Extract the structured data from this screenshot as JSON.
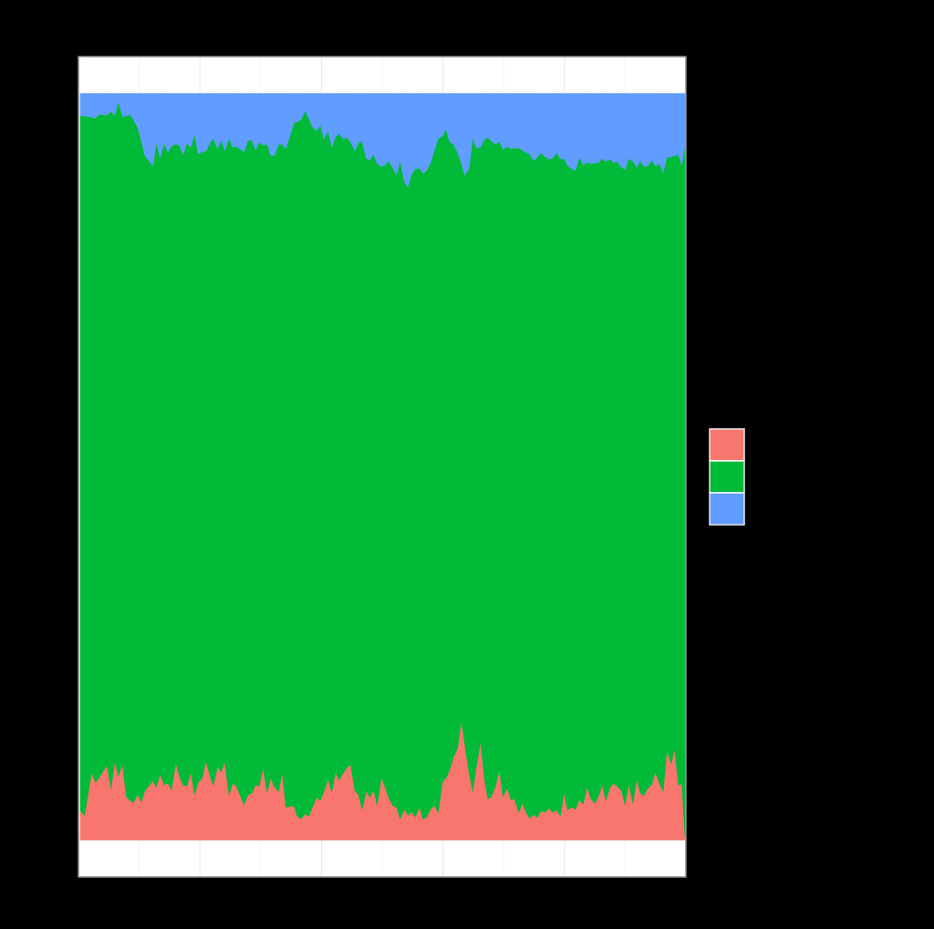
{
  "chart_data": {
    "type": "area",
    "stacking": "fill",
    "x_range": [
      0,
      1
    ],
    "ylim": [
      0,
      1
    ],
    "grid": true,
    "legend_placement": "right",
    "colors": [
      "#F8766D",
      "#00BA38",
      "#619CFF"
    ],
    "x": [
      0.0,
      0.007,
      0.019,
      0.025,
      0.031,
      0.044,
      0.051,
      0.057,
      0.063,
      0.07,
      0.076,
      0.082,
      0.088,
      0.095,
      0.101,
      0.107,
      0.12,
      0.126,
      0.132,
      0.139,
      0.145,
      0.151,
      0.158,
      0.164,
      0.17,
      0.176,
      0.183,
      0.189,
      0.195,
      0.202,
      0.208,
      0.214,
      0.22,
      0.227,
      0.233,
      0.239,
      0.246,
      0.252,
      0.258,
      0.271,
      0.277,
      0.284,
      0.29,
      0.296,
      0.302,
      0.309,
      0.315,
      0.321,
      0.328,
      0.334,
      0.34,
      0.353,
      0.359,
      0.365,
      0.372,
      0.378,
      0.384,
      0.391,
      0.397,
      0.403,
      0.41,
      0.416,
      0.422,
      0.428,
      0.435,
      0.441,
      0.447,
      0.454,
      0.46,
      0.466,
      0.473,
      0.479,
      0.485,
      0.491,
      0.498,
      0.504,
      0.51,
      0.517,
      0.523,
      0.529,
      0.536,
      0.542,
      0.548,
      0.554,
      0.561,
      0.567,
      0.573,
      0.58,
      0.586,
      0.592,
      0.599,
      0.605,
      0.611,
      0.617,
      0.624,
      0.63,
      0.636,
      0.643,
      0.649,
      0.655,
      0.662,
      0.668,
      0.674,
      0.68,
      0.687,
      0.693,
      0.699,
      0.706,
      0.712,
      0.718,
      0.725,
      0.731,
      0.737,
      0.743,
      0.75,
      0.756,
      0.762,
      0.769,
      0.775,
      0.781,
      0.788,
      0.794,
      0.8,
      0.806,
      0.813,
      0.819,
      0.825,
      0.832,
      0.838,
      0.844,
      0.851,
      0.857,
      0.863,
      0.869,
      0.876,
      0.882,
      0.888,
      0.895,
      0.901,
      0.907,
      0.914,
      0.92,
      0.926,
      0.932,
      0.939,
      0.945,
      0.951,
      0.958,
      0.964,
      0.97,
      0.977,
      0.983,
      0.989,
      0.995,
      1.0
    ],
    "series": [
      {
        "values": [
          0.039,
          0.033,
          0.091,
          0.077,
          0.083,
          0.1,
          0.069,
          0.105,
          0.086,
          0.101,
          0.058,
          0.053,
          0.05,
          0.061,
          0.051,
          0.066,
          0.079,
          0.071,
          0.088,
          0.074,
          0.076,
          0.067,
          0.103,
          0.085,
          0.074,
          0.072,
          0.091,
          0.061,
          0.077,
          0.083,
          0.106,
          0.087,
          0.073,
          0.098,
          0.091,
          0.105,
          0.06,
          0.076,
          0.072,
          0.047,
          0.06,
          0.063,
          0.074,
          0.072,
          0.097,
          0.064,
          0.083,
          0.071,
          0.065,
          0.09,
          0.044,
          0.046,
          0.032,
          0.028,
          0.035,
          0.032,
          0.044,
          0.057,
          0.053,
          0.065,
          0.082,
          0.064,
          0.091,
          0.08,
          0.09,
          0.097,
          0.101,
          0.066,
          0.061,
          0.041,
          0.066,
          0.057,
          0.067,
          0.046,
          0.084,
          0.071,
          0.057,
          0.046,
          0.044,
          0.028,
          0.041,
          0.033,
          0.038,
          0.031,
          0.044,
          0.028,
          0.031,
          0.042,
          0.046,
          0.037,
          0.078,
          0.083,
          0.094,
          0.111,
          0.123,
          0.16,
          0.127,
          0.089,
          0.065,
          0.099,
          0.132,
          0.084,
          0.055,
          0.058,
          0.073,
          0.094,
          0.058,
          0.07,
          0.054,
          0.055,
          0.037,
          0.049,
          0.038,
          0.029,
          0.034,
          0.03,
          0.039,
          0.037,
          0.043,
          0.037,
          0.04,
          0.032,
          0.063,
          0.04,
          0.044,
          0.041,
          0.054,
          0.048,
          0.072,
          0.056,
          0.049,
          0.059,
          0.074,
          0.053,
          0.07,
          0.076,
          0.072,
          0.066,
          0.047,
          0.075,
          0.049,
          0.082,
          0.063,
          0.06,
          0.07,
          0.074,
          0.091,
          0.075,
          0.065,
          0.12,
          0.102,
          0.122,
          0.074,
          0.075,
          0.005
        ]
      },
      {
        "values": [
          0.931,
          0.937,
          0.877,
          0.89,
          0.889,
          0.871,
          0.907,
          0.866,
          0.903,
          0.868,
          0.912,
          0.919,
          0.915,
          0.893,
          0.885,
          0.851,
          0.824,
          0.863,
          0.826,
          0.859,
          0.845,
          0.863,
          0.829,
          0.846,
          0.844,
          0.861,
          0.837,
          0.884,
          0.842,
          0.839,
          0.817,
          0.846,
          0.867,
          0.828,
          0.847,
          0.818,
          0.88,
          0.852,
          0.857,
          0.875,
          0.877,
          0.874,
          0.85,
          0.863,
          0.834,
          0.868,
          0.834,
          0.846,
          0.867,
          0.842,
          0.882,
          0.914,
          0.93,
          0.937,
          0.942,
          0.935,
          0.911,
          0.893,
          0.905,
          0.874,
          0.868,
          0.864,
          0.851,
          0.866,
          0.849,
          0.844,
          0.834,
          0.857,
          0.873,
          0.895,
          0.847,
          0.854,
          0.852,
          0.86,
          0.818,
          0.833,
          0.853,
          0.854,
          0.847,
          0.882,
          0.84,
          0.842,
          0.854,
          0.868,
          0.856,
          0.865,
          0.866,
          0.867,
          0.879,
          0.903,
          0.865,
          0.869,
          0.841,
          0.821,
          0.798,
          0.747,
          0.763,
          0.811,
          0.876,
          0.828,
          0.796,
          0.854,
          0.886,
          0.878,
          0.859,
          0.842,
          0.867,
          0.859,
          0.872,
          0.872,
          0.89,
          0.875,
          0.883,
          0.89,
          0.876,
          0.885,
          0.881,
          0.878,
          0.869,
          0.876,
          0.881,
          0.88,
          0.85,
          0.863,
          0.855,
          0.856,
          0.861,
          0.856,
          0.836,
          0.85,
          0.858,
          0.848,
          0.839,
          0.856,
          0.842,
          0.831,
          0.837,
          0.835,
          0.851,
          0.838,
          0.86,
          0.819,
          0.847,
          0.842,
          0.833,
          0.837,
          0.812,
          0.831,
          0.829,
          0.794,
          0.813,
          0.795,
          0.844,
          0.829,
          0.925
        ]
      },
      {
        "values": [
          0.03,
          0.03,
          0.032,
          0.033,
          0.028,
          0.029,
          0.024,
          0.029,
          0.011,
          0.031,
          0.03,
          0.028,
          0.035,
          0.046,
          0.064,
          0.083,
          0.097,
          0.066,
          0.086,
          0.067,
          0.079,
          0.07,
          0.068,
          0.069,
          0.082,
          0.067,
          0.072,
          0.055,
          0.081,
          0.078,
          0.077,
          0.067,
          0.06,
          0.074,
          0.062,
          0.077,
          0.06,
          0.072,
          0.071,
          0.078,
          0.063,
          0.063,
          0.076,
          0.065,
          0.069,
          0.068,
          0.083,
          0.083,
          0.068,
          0.068,
          0.074,
          0.04,
          0.038,
          0.035,
          0.023,
          0.033,
          0.045,
          0.05,
          0.042,
          0.061,
          0.05,
          0.072,
          0.058,
          0.054,
          0.061,
          0.059,
          0.065,
          0.077,
          0.066,
          0.064,
          0.087,
          0.089,
          0.081,
          0.094,
          0.098,
          0.096,
          0.09,
          0.1,
          0.109,
          0.09,
          0.119,
          0.125,
          0.108,
          0.101,
          0.1,
          0.107,
          0.103,
          0.091,
          0.075,
          0.06,
          0.057,
          0.048,
          0.065,
          0.068,
          0.079,
          0.093,
          0.11,
          0.1,
          0.059,
          0.073,
          0.072,
          0.062,
          0.059,
          0.064,
          0.068,
          0.064,
          0.075,
          0.071,
          0.074,
          0.073,
          0.073,
          0.076,
          0.079,
          0.081,
          0.09,
          0.085,
          0.08,
          0.085,
          0.088,
          0.087,
          0.079,
          0.088,
          0.087,
          0.097,
          0.101,
          0.103,
          0.085,
          0.096,
          0.092,
          0.094,
          0.093,
          0.093,
          0.087,
          0.091,
          0.088,
          0.093,
          0.091,
          0.099,
          0.102,
          0.087,
          0.091,
          0.099,
          0.09,
          0.098,
          0.097,
          0.089,
          0.097,
          0.094,
          0.106,
          0.086,
          0.085,
          0.083,
          0.082,
          0.096,
          0.07
        ]
      }
    ]
  }
}
